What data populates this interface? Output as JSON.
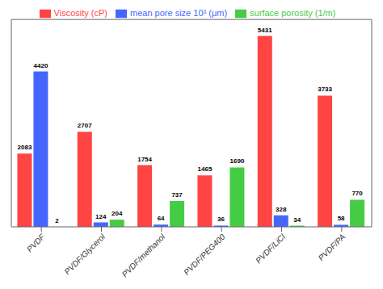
{
  "chart_data": {
    "type": "bar",
    "categories": [
      "PVDF",
      "PVDF/Glycerol",
      "PVDF/methanol",
      "PVDF/PEG400",
      "PVDF/LiCl",
      "PVDF/PA"
    ],
    "series": [
      {
        "name": "Viscosity (cP)",
        "color": "#ff4444",
        "values": [
          2083,
          2707,
          1754,
          1465,
          5431,
          3733
        ]
      },
      {
        "name": "mean pore size 10³ (μm)",
        "color": "#4466ff",
        "values": [
          4420,
          124,
          64,
          36,
          328,
          58
        ]
      },
      {
        "name": "surface porosity (1/m)",
        "color": "#44cc44",
        "values": [
          2,
          204,
          737,
          1690,
          34,
          770
        ]
      }
    ],
    "ylim": [
      0,
      5900
    ],
    "data_labels": true,
    "tick_labels": "x",
    "legend": "top",
    "grid": false
  }
}
